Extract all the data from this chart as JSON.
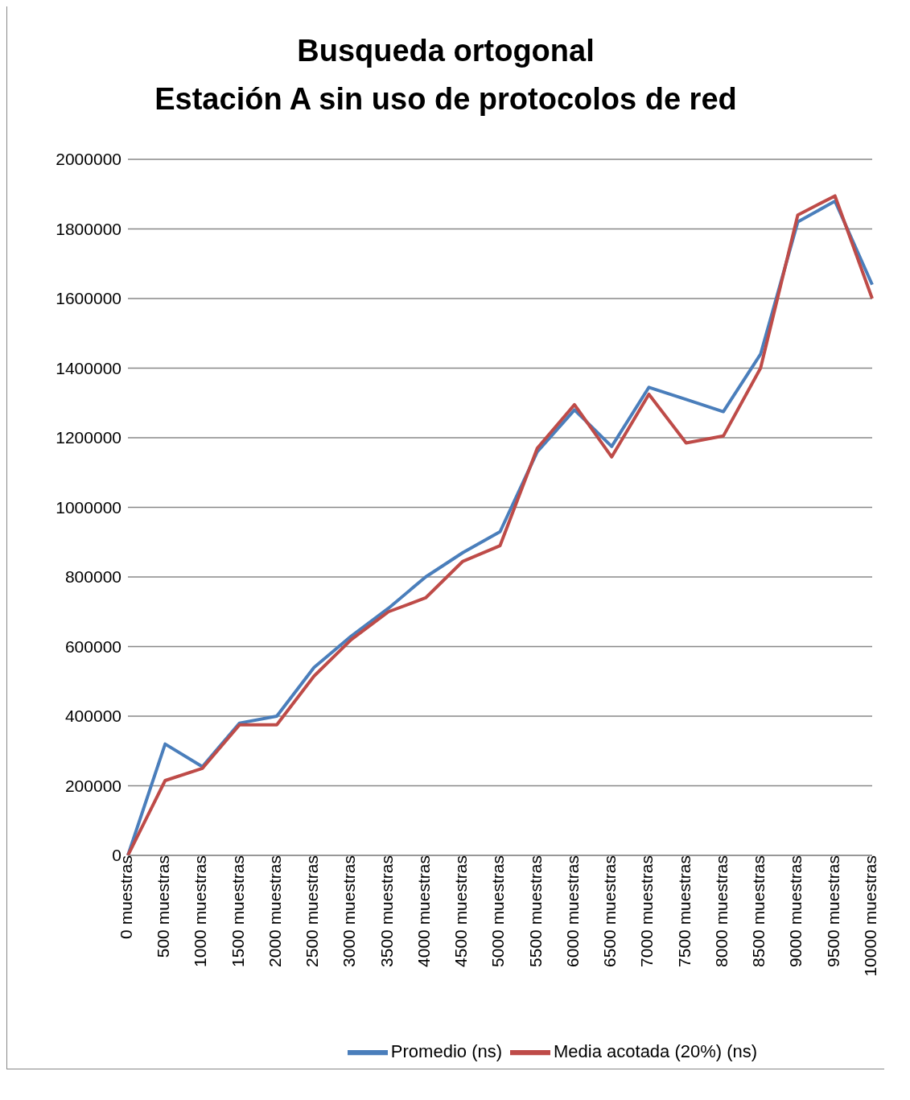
{
  "chart_data": {
    "type": "line",
    "title": "Busqueda ortogonal\nEstación A sin uso de protocolos de red",
    "categories": [
      "0 muestras",
      "500 muestras",
      "1000 muestras",
      "1500 muestras",
      "2000 muestras",
      "2500 muestras",
      "3000 muestras",
      "3500 muestras",
      "4000 muestras",
      "4500 muestras",
      "5000 muestras",
      "5500 muestras",
      "6000 muestras",
      "6500 muestras",
      "7000 muestras",
      "7500 muestras",
      "8000 muestras",
      "8500 muestras",
      "9000 muestras",
      "9500 muestras",
      "10000 muestras"
    ],
    "series": [
      {
        "name": "Promedio (ns)",
        "color": "#4a7ebb",
        "values": [
          0,
          320000,
          255000,
          380000,
          400000,
          540000,
          630000,
          710000,
          800000,
          870000,
          930000,
          1160000,
          1280000,
          1175000,
          1345000,
          1310000,
          1275000,
          1440000,
          1820000,
          1880000,
          1640000
        ]
      },
      {
        "name": "Media acotada (20%) (ns)",
        "color": "#be4b48",
        "values": [
          0,
          215000,
          250000,
          375000,
          375000,
          515000,
          620000,
          700000,
          740000,
          845000,
          890000,
          1170000,
          1295000,
          1145000,
          1325000,
          1185000,
          1205000,
          1400000,
          1840000,
          1895000,
          1600000
        ]
      }
    ],
    "ylim": [
      0,
      2000000
    ],
    "yticks": [
      0,
      200000,
      400000,
      600000,
      800000,
      1000000,
      1200000,
      1400000,
      1600000,
      1800000,
      2000000
    ],
    "grid": "y",
    "legend": "bottom",
    "marker": "none",
    "line_style": "solid"
  }
}
